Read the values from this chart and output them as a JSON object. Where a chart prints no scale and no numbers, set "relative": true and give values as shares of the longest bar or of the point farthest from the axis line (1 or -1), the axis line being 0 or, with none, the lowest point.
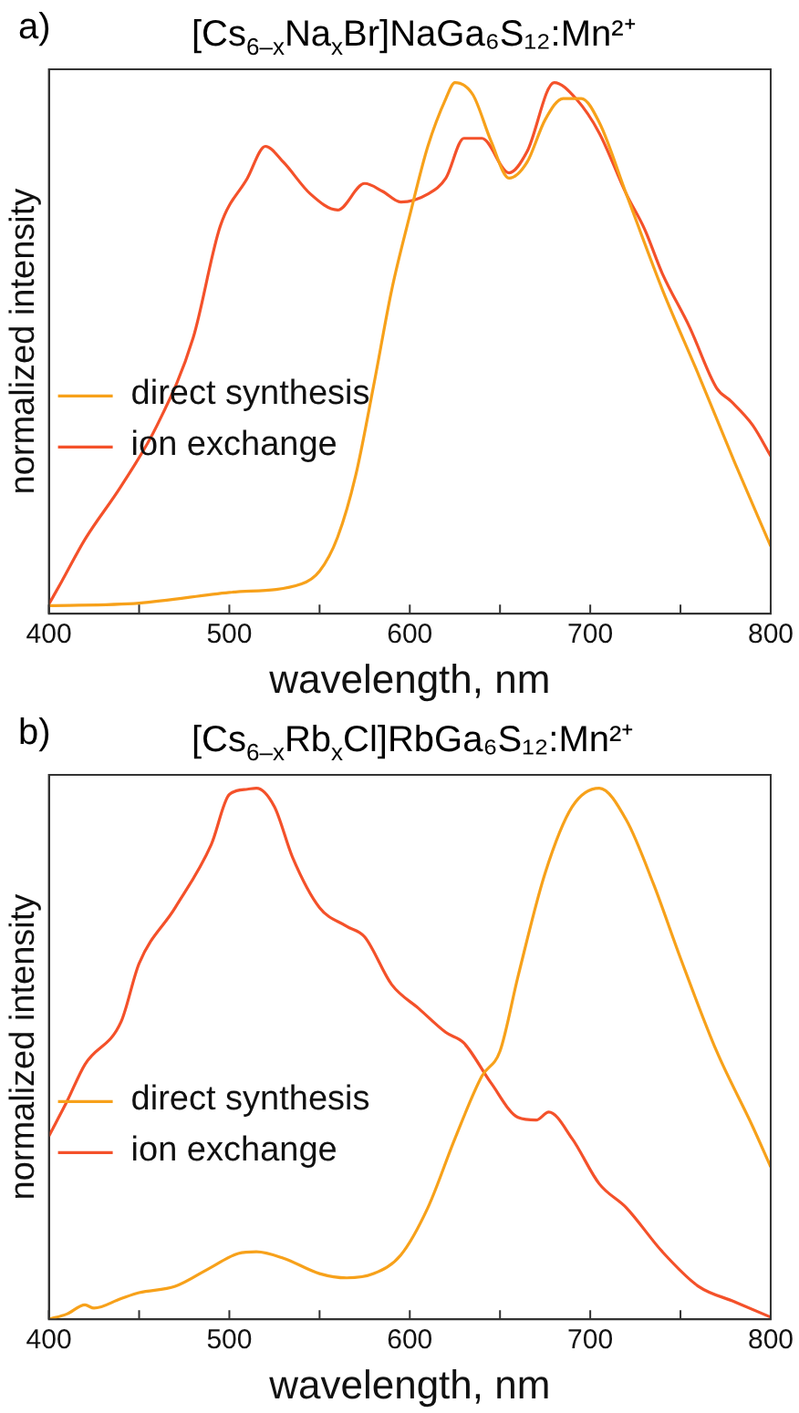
{
  "chart_data": [
    {
      "type": "line",
      "title": "[Cs$_{6–x}$Na$_{x}$Br]NaGa₆S₁₂:Mn²⁺",
      "xlabel": "wavelength, nm",
      "ylabel": "normalized intensity",
      "annotations": [
        "a)"
      ],
      "relative": true,
      "xlim": [
        400,
        800
      ],
      "xticks": [
        400,
        {
          "value": 450,
          "label": null
        },
        500,
        {
          "value": 550,
          "label": null
        },
        600,
        {
          "value": 650,
          "label": null
        },
        700,
        {
          "value": 750,
          "label": null
        },
        800
      ],
      "tick_labels": "x",
      "legend": "left",
      "grid": false,
      "marker": "none",
      "series": [
        {
          "name": "direct synthesis",
          "color": "#f7a11a",
          "x": [
            400,
            450,
            500,
            540,
            550,
            560,
            570,
            580,
            590,
            600,
            610,
            620,
            625,
            635,
            645,
            655,
            665,
            675,
            685,
            695,
            705,
            720,
            740,
            760,
            780,
            800
          ],
          "values": [
            0.015,
            0.02,
            0.04,
            0.056,
            0.08,
            0.144,
            0.26,
            0.43,
            0.61,
            0.75,
            0.88,
            0.97,
            1.0,
            0.977,
            0.89,
            0.82,
            0.85,
            0.93,
            0.97,
            0.97,
            0.925,
            0.79,
            0.61,
            0.45,
            0.285,
            0.127
          ]
        },
        {
          "name": "ion exchange",
          "color": "#f4512a",
          "x": [
            400,
            407,
            420,
            440,
            460,
            480,
            495,
            510,
            520,
            530,
            545,
            560,
            575,
            585,
            595,
            610,
            620,
            630,
            640,
            655,
            665,
            680,
            692,
            705,
            720,
            730,
            740,
            755,
            770,
            778,
            790,
            800
          ],
          "values": [
            0.018,
            0.06,
            0.14,
            0.24,
            0.355,
            0.52,
            0.73,
            0.82,
            0.88,
            0.85,
            0.79,
            0.76,
            0.81,
            0.795,
            0.775,
            0.79,
            0.82,
            0.895,
            0.895,
            0.83,
            0.87,
            1.0,
            0.97,
            0.905,
            0.79,
            0.725,
            0.64,
            0.54,
            0.425,
            0.4,
            0.355,
            0.297
          ]
        }
      ]
    },
    {
      "type": "line",
      "title": "[Cs$_{6–x}$Rb$_{x}$Cl]RbGa₆S₁₂:Mn²⁺",
      "xlabel": "wavelength, nm",
      "ylabel": "normalized intensity",
      "annotations": [
        "b)"
      ],
      "relative": true,
      "xlim": [
        400,
        800
      ],
      "xticks": [
        400,
        {
          "value": 450,
          "label": null
        },
        500,
        {
          "value": 550,
          "label": null
        },
        600,
        {
          "value": 650,
          "label": null
        },
        700,
        {
          "value": 750,
          "label": null
        },
        800
      ],
      "tick_labels": "x",
      "legend": "left",
      "grid": false,
      "marker": "none",
      "series": [
        {
          "name": "direct synthesis",
          "color": "#f7a11a",
          "x": [
            400,
            410,
            420,
            425,
            440,
            450,
            470,
            490,
            505,
            515,
            530,
            550,
            565,
            580,
            595,
            610,
            625,
            640,
            650,
            660,
            675,
            690,
            705,
            720,
            735,
            750,
            770,
            790,
            800
          ],
          "values": [
            0,
            0.01,
            0.027,
            0.021,
            0.039,
            0.05,
            0.062,
            0.098,
            0.124,
            0.127,
            0.115,
            0.086,
            0.078,
            0.086,
            0.121,
            0.21,
            0.34,
            0.458,
            0.505,
            0.646,
            0.84,
            0.965,
            1.0,
            0.94,
            0.82,
            0.68,
            0.505,
            0.363,
            0.287
          ]
        },
        {
          "name": "ion exchange",
          "color": "#f4512a",
          "x": [
            400,
            410,
            420,
            440,
            450,
            470,
            490,
            500,
            510,
            515,
            525,
            535,
            550,
            565,
            575,
            590,
            605,
            620,
            630,
            645,
            660,
            670,
            677,
            690,
            705,
            720,
            740,
            760,
            780,
            800
          ],
          "values": [
            0.345,
            0.41,
            0.48,
            0.56,
            0.67,
            0.775,
            0.894,
            0.988,
            0.998,
            1.0,
            0.965,
            0.87,
            0.775,
            0.74,
            0.72,
            0.63,
            0.585,
            0.54,
            0.52,
            0.445,
            0.38,
            0.375,
            0.39,
            0.34,
            0.255,
            0.21,
            0.127,
            0.062,
            0.033,
            0.004
          ]
        }
      ]
    }
  ]
}
